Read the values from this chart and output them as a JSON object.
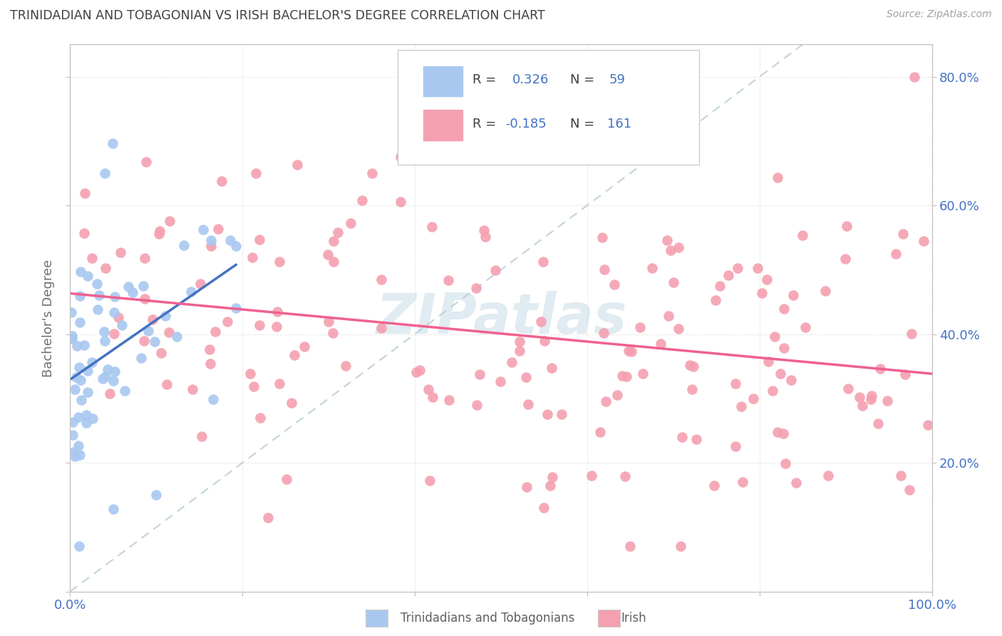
{
  "title": "TRINIDADIAN AND TOBAGONIAN VS IRISH BACHELOR'S DEGREE CORRELATION CHART",
  "source": "Source: ZipAtlas.com",
  "ylabel": "Bachelor's Degree",
  "tnt_color": "#a8c8f0",
  "irish_color": "#f4a0b0",
  "tnt_line_color": "#4472c4",
  "irish_line_color": "#f06090",
  "diag_line_color": "#b8ccd8",
  "watermark": "ZIPatlas",
  "watermark_color": "#c8dce8",
  "background_color": "#ffffff",
  "grid_color": "#d8d8d8",
  "title_color": "#404040",
  "axis_color": "#c0c0c0",
  "tick_color_blue": "#4472c4",
  "legend_text_color": "#4472c4",
  "legend_n_color": "#404040",
  "xlim": [
    0.0,
    1.0
  ],
  "ylim": [
    0.0,
    0.85
  ],
  "tnt_seed": 42,
  "irish_seed": 99
}
